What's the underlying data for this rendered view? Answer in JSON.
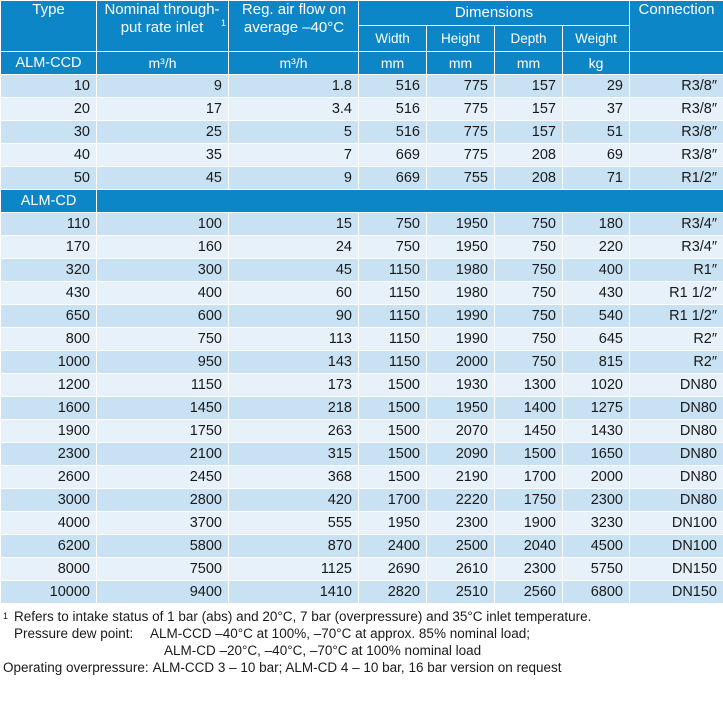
{
  "headers": {
    "type": "Type",
    "nominal": "Nominal through-put rate inlet",
    "nominal_sup": "1",
    "airflow": "Reg. air flow on average –40°C",
    "dimensions": "Dimensions",
    "connection": "Connection",
    "width": "Width",
    "height": "Height",
    "depth": "Depth",
    "weight": "Weight"
  },
  "units": {
    "nominal": "m³/h",
    "airflow": "m³/h",
    "width": "mm",
    "height": "mm",
    "depth": "mm",
    "weight": "kg"
  },
  "groups": [
    {
      "name": "ALM-CCD",
      "rows": [
        [
          "10",
          "9",
          "1.8",
          "516",
          "775",
          "157",
          "29",
          "R3/8″"
        ],
        [
          "20",
          "17",
          "3.4",
          "516",
          "775",
          "157",
          "37",
          "R3/8″"
        ],
        [
          "30",
          "25",
          "5",
          "516",
          "775",
          "157",
          "51",
          "R3/8″"
        ],
        [
          "40",
          "35",
          "7",
          "669",
          "775",
          "208",
          "69",
          "R3/8″"
        ],
        [
          "50",
          "45",
          "9",
          "669",
          "755",
          "208",
          "71",
          "R1/2″"
        ]
      ]
    },
    {
      "name": "ALM-CD",
      "rows": [
        [
          "110",
          "100",
          "15",
          "750",
          "1950",
          "750",
          "180",
          "R3/4″"
        ],
        [
          "170",
          "160",
          "24",
          "750",
          "1950",
          "750",
          "220",
          "R3/4″"
        ],
        [
          "320",
          "300",
          "45",
          "1150",
          "1980",
          "750",
          "400",
          "R1″"
        ],
        [
          "430",
          "400",
          "60",
          "1150",
          "1980",
          "750",
          "430",
          "R1 1/2″"
        ],
        [
          "650",
          "600",
          "90",
          "1150",
          "1990",
          "750",
          "540",
          "R1 1/2″"
        ],
        [
          "800",
          "750",
          "113",
          "1150",
          "1990",
          "750",
          "645",
          "R2″"
        ],
        [
          "1000",
          "950",
          "143",
          "1150",
          "2000",
          "750",
          "815",
          "R2″"
        ],
        [
          "1200",
          "1150",
          "173",
          "1500",
          "1930",
          "1300",
          "1020",
          "DN80"
        ],
        [
          "1600",
          "1450",
          "218",
          "1500",
          "1950",
          "1400",
          "1275",
          "DN80"
        ],
        [
          "1900",
          "1750",
          "263",
          "1500",
          "2070",
          "1450",
          "1430",
          "DN80"
        ],
        [
          "2300",
          "2100",
          "315",
          "1500",
          "2090",
          "1500",
          "1650",
          "DN80"
        ],
        [
          "2600",
          "2450",
          "368",
          "1500",
          "2190",
          "1700",
          "2000",
          "DN80"
        ],
        [
          "3000",
          "2800",
          "420",
          "1700",
          "2220",
          "1750",
          "2300",
          "DN80"
        ],
        [
          "4000",
          "3700",
          "555",
          "1950",
          "2300",
          "1900",
          "3230",
          "DN100"
        ],
        [
          "6200",
          "5800",
          "870",
          "2400",
          "2500",
          "2040",
          "4500",
          "DN100"
        ],
        [
          "8000",
          "7500",
          "1125",
          "2690",
          "2610",
          "2300",
          "5750",
          "DN150"
        ],
        [
          "10000",
          "9400",
          "1410",
          "2820",
          "2510",
          "2560",
          "6800",
          "DN150"
        ]
      ]
    }
  ],
  "notes": {
    "footnote_mark": "1",
    "footnote_text": "Refers to intake status of 1 bar (abs) and 20°C, 7 bar (overpressure) and 35°C inlet temperature.",
    "dewpoint_label": "Pressure dew point:",
    "dewpoint_line1": "ALM-CCD –40°C at 100%, –70°C at approx. 85% nominal load;",
    "dewpoint_line2": "ALM-CD –20°C, –40°C, –70°C at 100% nominal load",
    "overpressure_label": "Operating overpressure:",
    "overpressure_text": "ALM-CCD 3 – 10 bar; ALM-CD 4 – 10 bar, 16 bar version on request"
  }
}
